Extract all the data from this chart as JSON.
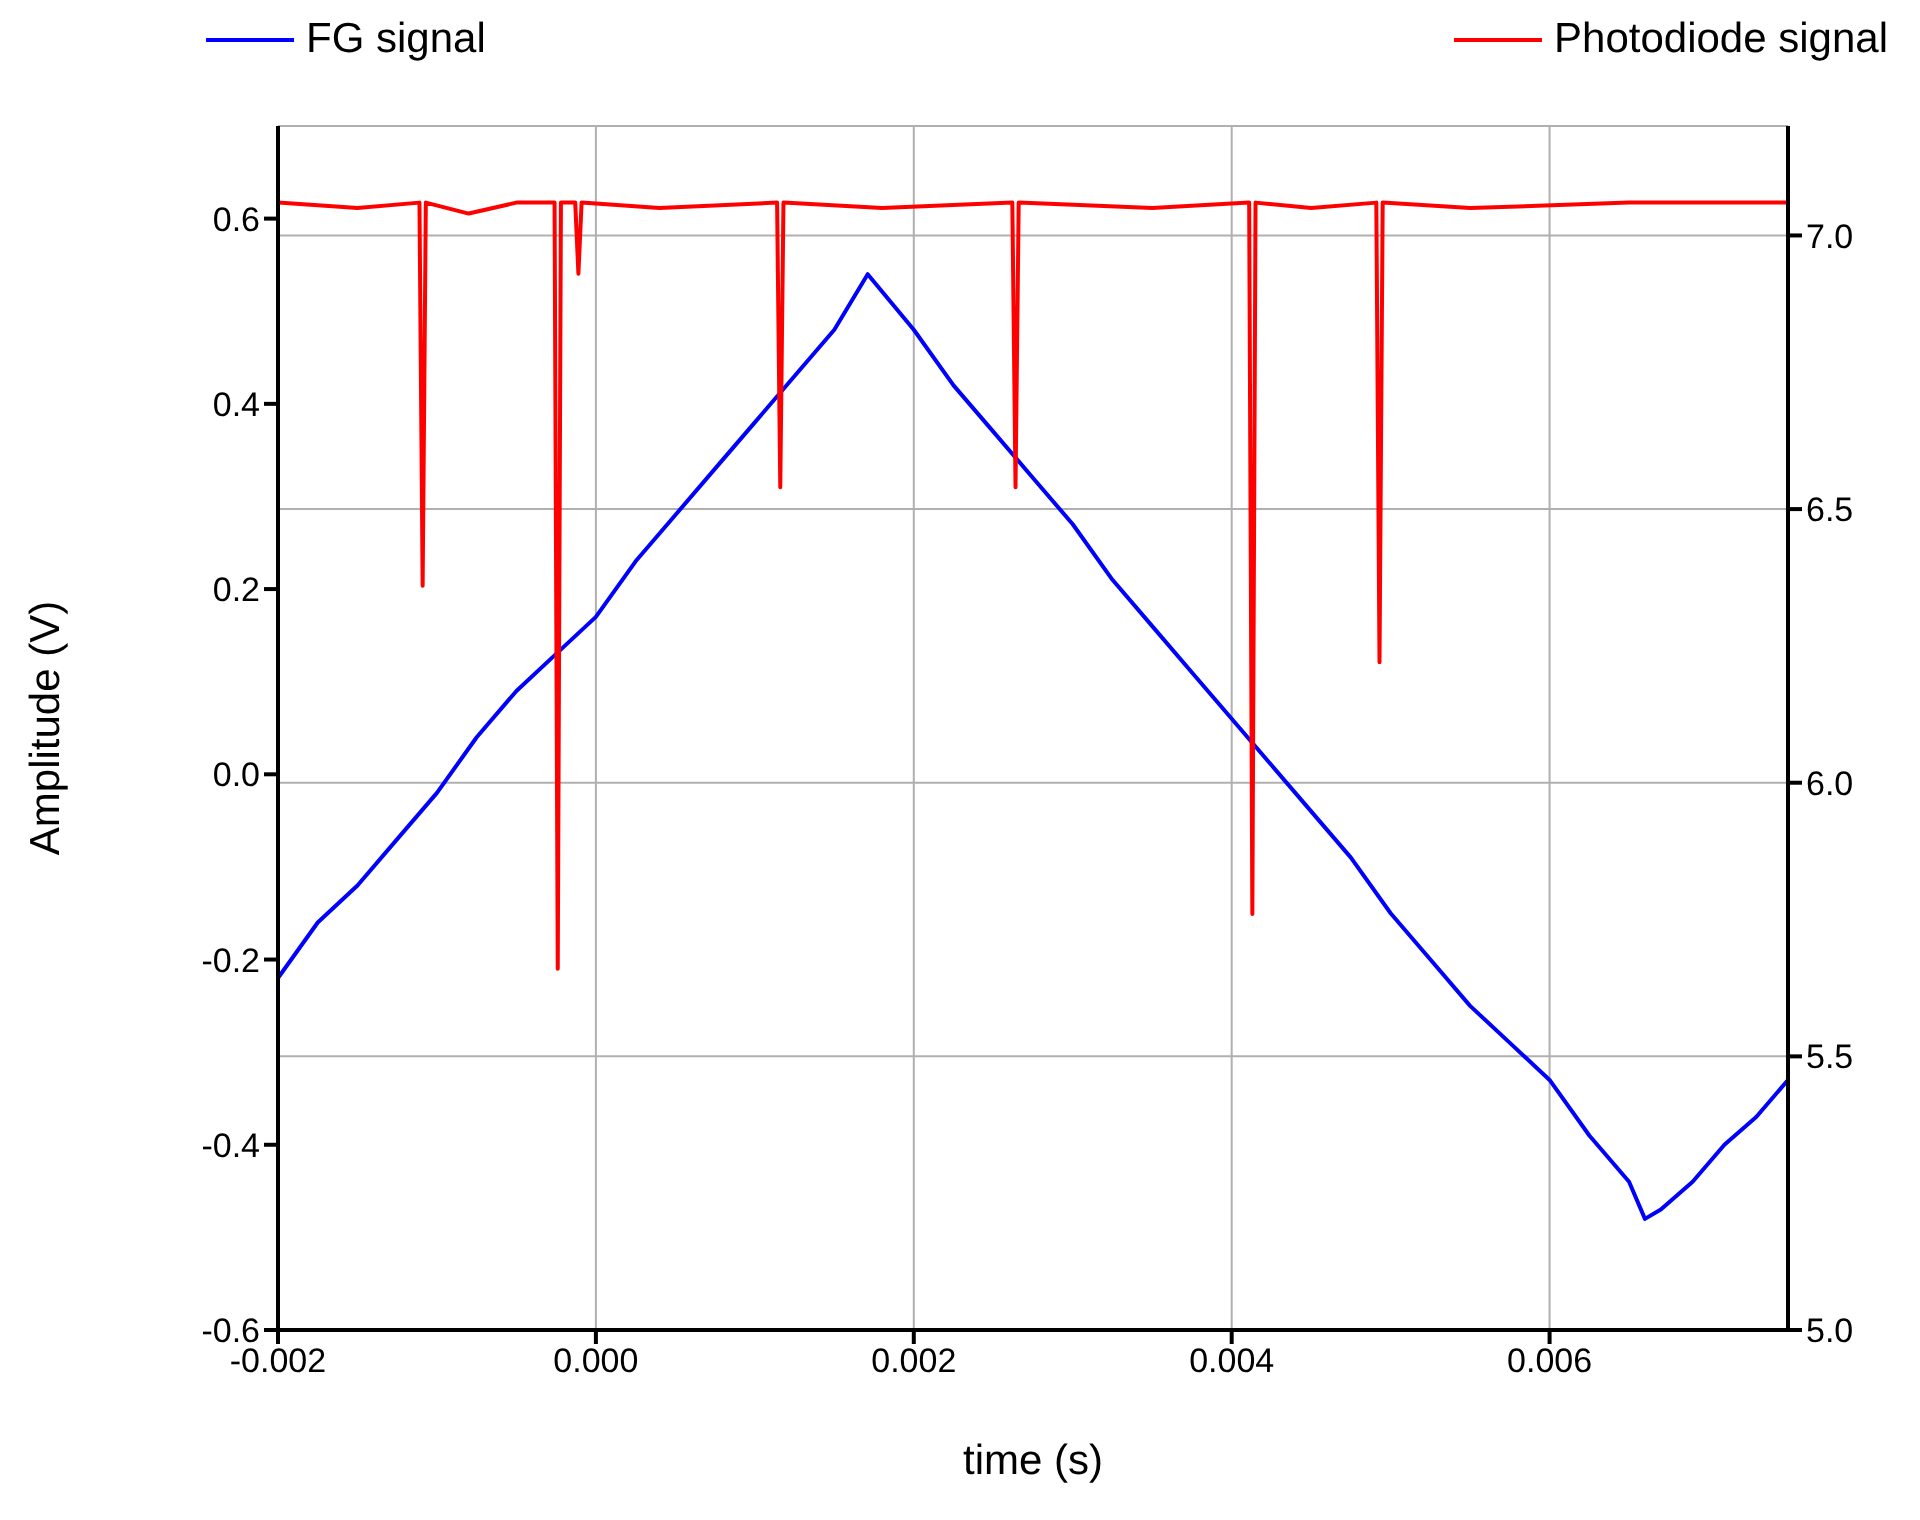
{
  "chart_data": {
    "type": "line",
    "xlabel": "time (s)",
    "ylabel": "Amplitude (V)",
    "xlim": [
      -0.002,
      0.0075
    ],
    "xticks": [
      {
        "value": -0.002,
        "label": "-0.002"
      },
      {
        "value": 0,
        "label": "0.000"
      },
      {
        "value": 0.002,
        "label": "0.002"
      },
      {
        "value": 0.004,
        "label": "0.004"
      },
      {
        "value": 0.006,
        "label": "0.006"
      }
    ],
    "ylim": [
      -0.6,
      0.7
    ],
    "yticks": [
      {
        "value": -0.6,
        "label": "-0.6"
      },
      {
        "value": -0.4,
        "label": "-0.4"
      },
      {
        "value": -0.2,
        "label": "-0.2"
      },
      {
        "value": 0,
        "label": "0.0"
      },
      {
        "value": 0.2,
        "label": "0.2"
      },
      {
        "value": 0.4,
        "label": "0.4"
      },
      {
        "value": 0.6,
        "label": "0.6"
      }
    ],
    "y2lim": [
      5.0,
      7.2
    ],
    "y2ticks": [
      {
        "value": 5.0,
        "label": "5.0"
      },
      {
        "value": 5.5,
        "label": "5.5"
      },
      {
        "value": 6.0,
        "label": "6.0"
      },
      {
        "value": 6.5,
        "label": "6.5"
      },
      {
        "value": 7.0,
        "label": "7.0"
      }
    ],
    "grid": true,
    "legend": "top",
    "line_style": "solid",
    "marker": "none",
    "series": [
      {
        "name": "FG signal",
        "color": "#0000ff",
        "x": [
          -0.002,
          -0.00175,
          -0.0015,
          -0.00125,
          -0.001,
          -0.00075,
          -0.0005,
          -0.00025,
          0,
          0.00025,
          0.0005,
          0.00075,
          0.001,
          0.00125,
          0.0015,
          0.00171,
          0.002,
          0.00225,
          0.0025,
          0.00275,
          0.003,
          0.00325,
          0.0035,
          0.00375,
          0.004,
          0.00425,
          0.0045,
          0.00475,
          0.005,
          0.00525,
          0.0055,
          0.00575,
          0.006,
          0.00625,
          0.0065,
          0.0066,
          0.0067,
          0.0069,
          0.0071,
          0.0073,
          0.0075
        ],
        "values": [
          -0.22,
          -0.16,
          -0.12,
          -0.07,
          -0.02,
          0.04,
          0.09,
          0.13,
          0.17,
          0.23,
          0.28,
          0.33,
          0.38,
          0.43,
          0.48,
          0.54,
          0.48,
          0.42,
          0.37,
          0.32,
          0.27,
          0.21,
          0.16,
          0.11,
          0.06,
          0.01,
          -0.04,
          -0.09,
          -0.15,
          -0.2,
          -0.25,
          -0.29,
          -0.33,
          -0.39,
          -0.44,
          -0.48,
          -0.47,
          -0.44,
          -0.4,
          -0.37,
          -0.33
        ]
      },
      {
        "name": "Photodiode signal",
        "color": "#ff0000",
        "axis": "y2",
        "x": [
          -0.002,
          -0.0015,
          -0.00111,
          -0.00109,
          -0.00107,
          -0.0008,
          -0.0005,
          -0.00026,
          -0.00024,
          -0.00022,
          -0.00013,
          -0.00011,
          -9e-05,
          0.0004,
          0.00114,
          0.00116,
          0.00118,
          0.0018,
          0.00262,
          0.00264,
          0.00266,
          0.0035,
          0.00411,
          0.00413,
          0.00415,
          0.0045,
          0.00491,
          0.00493,
          0.00495,
          0.0055,
          0.0065,
          0.0075
        ],
        "values": [
          7.06,
          7.05,
          7.06,
          6.36,
          7.06,
          7.04,
          7.06,
          7.06,
          5.66,
          7.06,
          7.06,
          6.93,
          7.06,
          7.05,
          7.06,
          6.54,
          7.06,
          7.05,
          7.06,
          6.54,
          7.06,
          7.05,
          7.06,
          5.76,
          7.06,
          7.05,
          7.06,
          6.22,
          7.06,
          7.05,
          7.06,
          7.06
        ]
      }
    ]
  }
}
